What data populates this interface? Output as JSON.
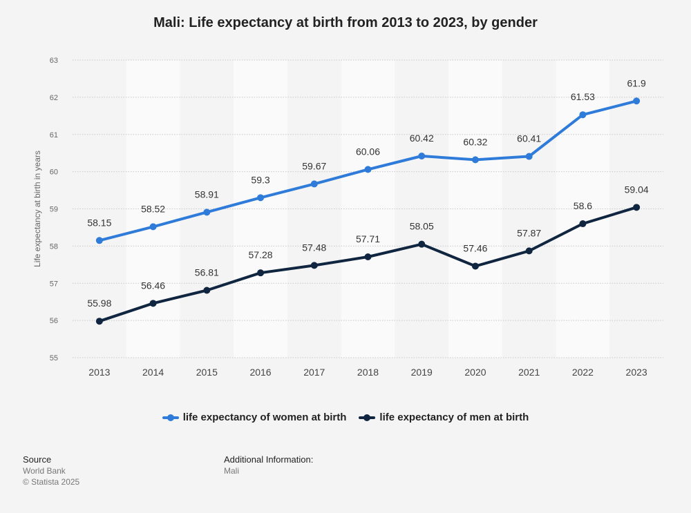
{
  "chart_data": {
    "type": "line",
    "title": "Mali: Life expectancy at birth from 2013 to 2023, by gender",
    "ylabel": "Life expectancy at birth in years",
    "xlabel": "",
    "categories": [
      "2013",
      "2014",
      "2015",
      "2016",
      "2017",
      "2018",
      "2019",
      "2020",
      "2021",
      "2022",
      "2023"
    ],
    "ylim": [
      55,
      63
    ],
    "yticks": [
      "55",
      "56",
      "57",
      "58",
      "59",
      "60",
      "61",
      "62",
      "63"
    ],
    "grid": true,
    "legend_position": "bottom",
    "series": [
      {
        "name": "life expectancy of women at birth",
        "color": "#2f7bd9",
        "values": [
          58.15,
          58.52,
          58.91,
          59.3,
          59.67,
          60.06,
          60.42,
          60.32,
          60.41,
          61.53,
          61.9
        ],
        "labels": [
          "58.15",
          "58.52",
          "58.91",
          "59.3",
          "59.67",
          "60.06",
          "60.42",
          "60.32",
          "60.41",
          "61.53",
          "61.9"
        ]
      },
      {
        "name": "life expectancy of men at birth",
        "color": "#10253f",
        "values": [
          55.98,
          56.46,
          56.81,
          57.28,
          57.48,
          57.71,
          58.05,
          57.46,
          57.87,
          58.6,
          59.04
        ],
        "labels": [
          "55.98",
          "56.46",
          "56.81",
          "57.28",
          "57.48",
          "57.71",
          "58.05",
          "57.46",
          "57.87",
          "58.6",
          "59.04"
        ]
      }
    ]
  },
  "footer": {
    "source_heading": "Source",
    "source_lines": [
      "World Bank",
      "© Statista 2025"
    ],
    "additional_heading": "Additional Information:",
    "additional_lines": [
      "Mali"
    ]
  }
}
